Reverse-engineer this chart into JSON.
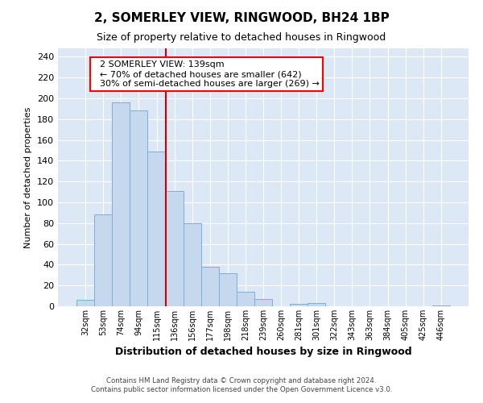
{
  "title": "2, SOMERLEY VIEW, RINGWOOD, BH24 1BP",
  "subtitle": "Size of property relative to detached houses in Ringwood",
  "xlabel": "Distribution of detached houses by size in Ringwood",
  "ylabel": "Number of detached properties",
  "bin_labels": [
    "32sqm",
    "53sqm",
    "74sqm",
    "94sqm",
    "115sqm",
    "136sqm",
    "156sqm",
    "177sqm",
    "198sqm",
    "218sqm",
    "239sqm",
    "260sqm",
    "281sqm",
    "301sqm",
    "322sqm",
    "343sqm",
    "363sqm",
    "384sqm",
    "405sqm",
    "425sqm",
    "446sqm"
  ],
  "bar_values": [
    6,
    88,
    196,
    188,
    149,
    111,
    80,
    38,
    32,
    14,
    7,
    0,
    2,
    3,
    0,
    0,
    0,
    0,
    0,
    0,
    1
  ],
  "bar_color": "#c5d8ee",
  "bar_edge_color": "#7bafd4",
  "vline_color": "#cc0000",
  "annotation_title": "2 SOMERLEY VIEW: 139sqm",
  "annotation_line1": "← 70% of detached houses are smaller (642)",
  "annotation_line2": "30% of semi-detached houses are larger (269) →",
  "ylim": [
    0,
    248
  ],
  "yticks": [
    0,
    20,
    40,
    60,
    80,
    100,
    120,
    140,
    160,
    180,
    200,
    220,
    240
  ],
  "footer_line1": "Contains HM Land Registry data © Crown copyright and database right 2024.",
  "footer_line2": "Contains public sector information licensed under the Open Government Licence v3.0.",
  "fig_bg_color": "#ffffff",
  "plot_bg_color": "#dce8f5",
  "grid_color": "#ffffff",
  "title_fontsize": 11,
  "subtitle_fontsize": 9,
  "ylabel_fontsize": 8,
  "xlabel_fontsize": 9
}
